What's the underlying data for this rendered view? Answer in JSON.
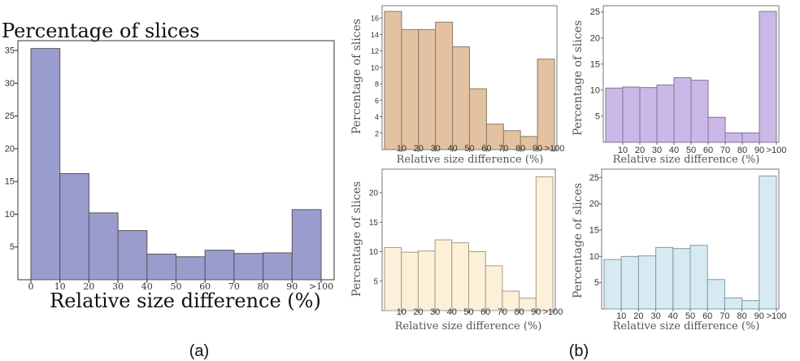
{
  "chart_data": [
    {
      "id": "a",
      "type": "bar",
      "title": "Percentage of slices",
      "xlabel": "Relative size difference (%)",
      "ylabel": "",
      "categories": [
        "0-10",
        "10-20",
        "20-30",
        "30-40",
        "40-50",
        "50-60",
        "60-70",
        "70-80",
        "80-90",
        "90-100"
      ],
      "values": [
        35.3,
        16.2,
        10.2,
        7.5,
        3.9,
        3.5,
        4.5,
        4.0,
        4.1,
        10.7
      ],
      "xticks": [
        "0",
        "10",
        "20",
        "30",
        "40",
        "50",
        "60",
        "70",
        "80",
        "90",
        ">100"
      ],
      "yticks": [
        5,
        10,
        15,
        20,
        25,
        30,
        35
      ],
      "ylim": [
        0,
        36.5
      ],
      "color": "#9b9cce",
      "panel_label": "(a)"
    },
    {
      "id": "b1",
      "type": "bar",
      "xlabel": "Relative size difference (%)",
      "ylabel": "Percentage of slices",
      "categories": [
        "0-10",
        "10-20",
        "20-30",
        "30-40",
        "40-50",
        "50-60",
        "60-70",
        "70-80",
        "80-90",
        "90-100"
      ],
      "values": [
        16.8,
        14.6,
        14.6,
        15.5,
        12.5,
        7.4,
        3.1,
        2.3,
        1.6,
        11.0
      ],
      "xticks": [
        "10",
        "20",
        "30",
        "40",
        "50",
        "60",
        "70",
        "80",
        "90",
        ">100"
      ],
      "yticks": [
        2,
        4,
        6,
        8,
        10,
        12,
        14,
        16
      ],
      "ylim": [
        0,
        17.5
      ],
      "color": "#e3c2a2"
    },
    {
      "id": "b2",
      "type": "bar",
      "xlabel": "Relative size difference (%)",
      "ylabel": "Percentage of slices",
      "categories": [
        "0-10",
        "10-20",
        "20-30",
        "30-40",
        "40-50",
        "50-60",
        "60-70",
        "70-80",
        "80-90",
        "90-100"
      ],
      "values": [
        10.4,
        10.6,
        10.5,
        11.0,
        12.4,
        11.9,
        4.8,
        1.8,
        1.8,
        25.1
      ],
      "xticks": [
        "10",
        "20",
        "30",
        "40",
        "50",
        "60",
        "70",
        "80",
        "90",
        ">100"
      ],
      "yticks": [
        5,
        10,
        15,
        20,
        25
      ],
      "ylim": [
        0,
        26.2
      ],
      "color": "#cbb8e8"
    },
    {
      "id": "b3",
      "type": "bar",
      "xlabel": "Relative size difference (%)",
      "ylabel": "Percentage of slices",
      "categories": [
        "0-10",
        "10-20",
        "20-30",
        "30-40",
        "40-50",
        "50-60",
        "60-70",
        "70-80",
        "80-90",
        "90-100"
      ],
      "values": [
        10.7,
        9.9,
        10.1,
        12.0,
        11.5,
        10.0,
        7.6,
        3.3,
        2.1,
        22.7
      ],
      "xticks": [
        "10",
        "20",
        "30",
        "40",
        "50",
        "60",
        "70",
        "80",
        "90",
        ">100"
      ],
      "yticks": [
        5,
        10,
        15,
        20
      ],
      "ylim": [
        0,
        24.0
      ],
      "color": "#fdf0d8"
    },
    {
      "id": "b4",
      "type": "bar",
      "xlabel": "Relative size difference (%)",
      "ylabel": "Percentage of slices",
      "categories": [
        "0-10",
        "10-20",
        "20-30",
        "30-40",
        "40-50",
        "50-60",
        "60-70",
        "70-80",
        "80-90",
        "90-100"
      ],
      "values": [
        9.4,
        10.0,
        10.1,
        11.7,
        11.5,
        12.1,
        5.6,
        2.1,
        1.6,
        25.3
      ],
      "xticks": [
        "10",
        "20",
        "30",
        "40",
        "50",
        "60",
        "70",
        "80",
        "90",
        ">100"
      ],
      "yticks": [
        5,
        10,
        15,
        20,
        25
      ],
      "ylim": [
        0,
        26.6
      ],
      "color": "#d7eaf1"
    }
  ],
  "panel_b_label": "(b)"
}
